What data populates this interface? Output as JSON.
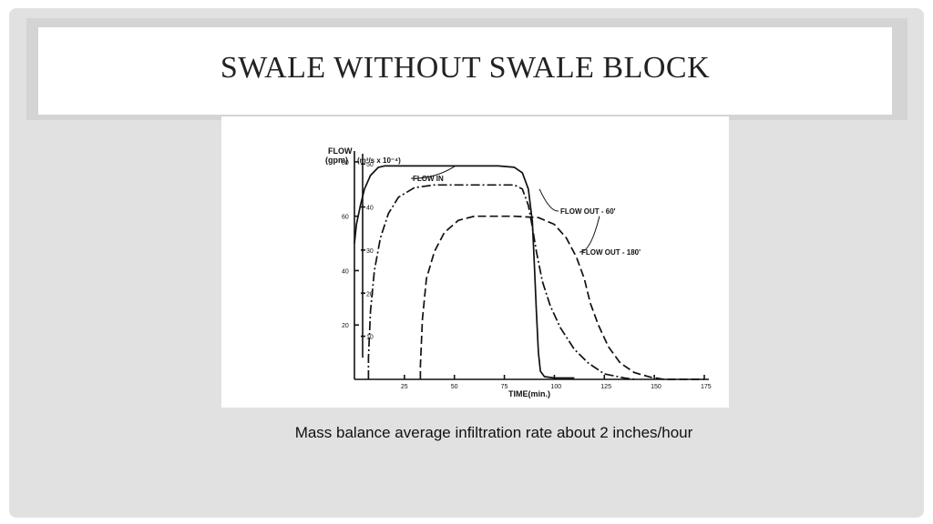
{
  "slide": {
    "title": "SWALE WITHOUT SWALE BLOCK",
    "caption": "Mass balance average infiltration rate about 2 inches/hour"
  },
  "chart_data": {
    "type": "line",
    "xlabel": "TIME(min.)",
    "ylabel_primary": "FLOW",
    "ylabel_primary_unit": "(gpm)",
    "ylabel_secondary": "(m³/s x 10⁻⁴)",
    "xlim": [
      0,
      175
    ],
    "ylim": [
      0,
      88
    ],
    "x_ticks": [
      25,
      50,
      75,
      100,
      125,
      150,
      175
    ],
    "y_ticks_gpm": [
      20,
      40,
      60,
      80
    ],
    "y_ticks_m3s": [
      10,
      20,
      30,
      40,
      50
    ],
    "series": [
      {
        "name": "FLOW IN",
        "style": "solid",
        "points": [
          [
            0,
            50
          ],
          [
            1,
            57
          ],
          [
            3,
            64
          ],
          [
            5,
            70
          ],
          [
            8,
            75
          ],
          [
            12,
            78
          ],
          [
            15,
            78.5
          ],
          [
            30,
            78.5
          ],
          [
            55,
            78.5
          ],
          [
            72,
            78.5
          ],
          [
            80,
            78
          ],
          [
            84,
            76
          ],
          [
            87,
            70
          ],
          [
            89,
            58
          ],
          [
            90,
            42
          ],
          [
            91,
            25
          ],
          [
            92,
            10
          ],
          [
            93,
            3
          ],
          [
            95,
            1
          ],
          [
            100,
            0.5
          ],
          [
            110,
            0.5
          ]
        ]
      },
      {
        "name": "FLOW OUT - 60'",
        "style": "dashdot",
        "points": [
          [
            7,
            0
          ],
          [
            7,
            8
          ],
          [
            8,
            25
          ],
          [
            10,
            40
          ],
          [
            13,
            52
          ],
          [
            17,
            61
          ],
          [
            22,
            67
          ],
          [
            30,
            70.5
          ],
          [
            40,
            71.5
          ],
          [
            60,
            71.5
          ],
          [
            80,
            71.5
          ],
          [
            84,
            70
          ],
          [
            87,
            64
          ],
          [
            89,
            56
          ],
          [
            91,
            47
          ],
          [
            94,
            36
          ],
          [
            98,
            27
          ],
          [
            103,
            19
          ],
          [
            110,
            11
          ],
          [
            117,
            6
          ],
          [
            125,
            2
          ],
          [
            135,
            0.5
          ],
          [
            140,
            0
          ]
        ]
      },
      {
        "name": "FLOW OUT - 180'",
        "style": "dashed",
        "points": [
          [
            33,
            0
          ],
          [
            33,
            5
          ],
          [
            34,
            22
          ],
          [
            36,
            37
          ],
          [
            40,
            47
          ],
          [
            45,
            54
          ],
          [
            52,
            58.5
          ],
          [
            60,
            60
          ],
          [
            80,
            60
          ],
          [
            92,
            59.5
          ],
          [
            100,
            57
          ],
          [
            106,
            52
          ],
          [
            111,
            45
          ],
          [
            115,
            37
          ],
          [
            118,
            28
          ],
          [
            122,
            20
          ],
          [
            127,
            12
          ],
          [
            133,
            6
          ],
          [
            140,
            2.5
          ],
          [
            148,
            0.8
          ],
          [
            155,
            0
          ],
          [
            175,
            0
          ]
        ]
      }
    ],
    "legend": "inline labels near curves"
  }
}
